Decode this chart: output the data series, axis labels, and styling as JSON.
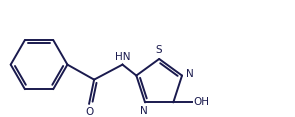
{
  "bg_color": "#ffffff",
  "line_color": "#1a1a4e",
  "line_width": 1.4,
  "font_size": 7.5,
  "fig_width": 2.95,
  "fig_height": 1.17,
  "dpi": 100,
  "xlim": [
    0,
    10
  ],
  "ylim": [
    0,
    4
  ]
}
